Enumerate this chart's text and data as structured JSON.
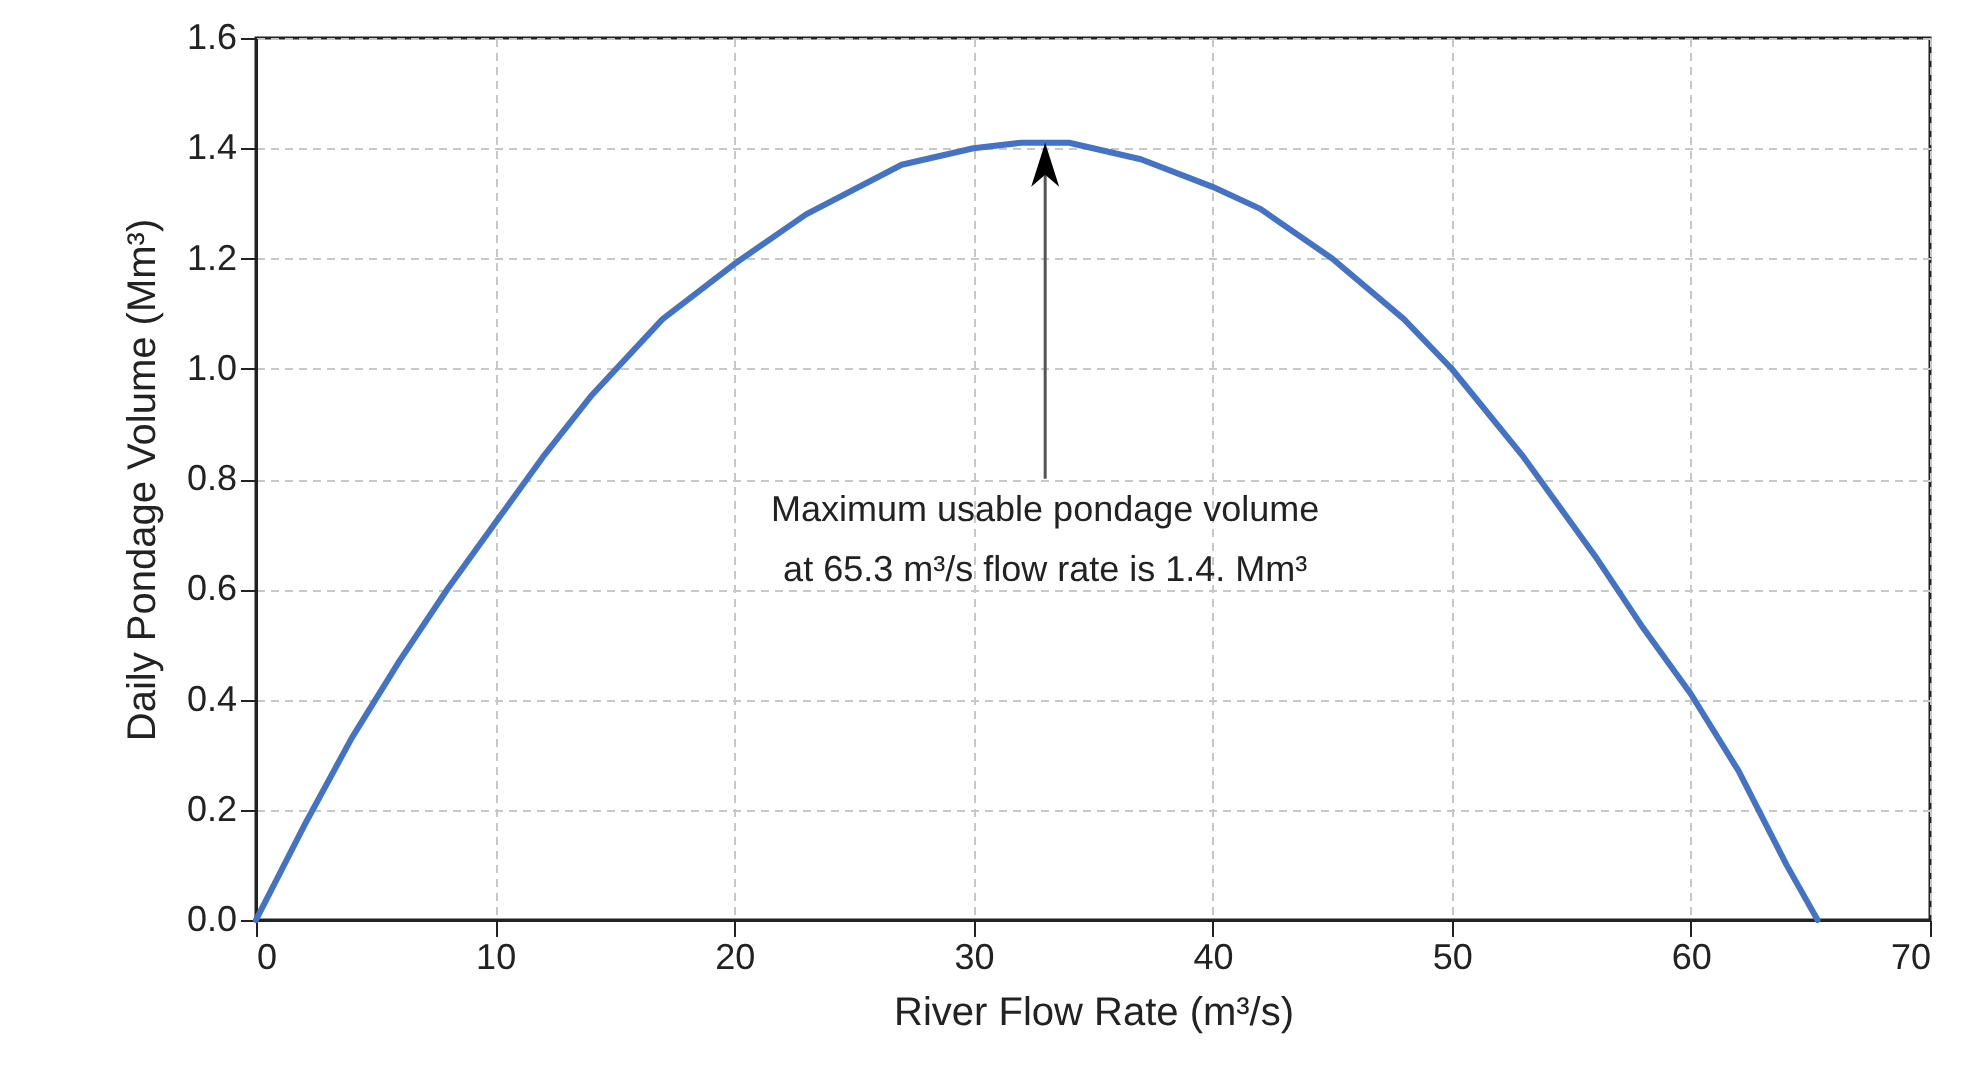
{
  "chart_data": {
    "type": "line",
    "xlabel": "River Flow Rate (m³/s)",
    "ylabel": "Daily Pondage Volume (Mm³)",
    "x": [
      0,
      2,
      4,
      6,
      8,
      10,
      12,
      14,
      17,
      20,
      23,
      27,
      30,
      32,
      34,
      37,
      40,
      42,
      45,
      48,
      50,
      53,
      56,
      58,
      60,
      62,
      64,
      65.3
    ],
    "series": [
      {
        "color": "#4472c4",
        "values": [
          0,
          0.17,
          0.33,
          0.47,
          0.6,
          0.72,
          0.84,
          0.95,
          1.09,
          1.19,
          1.28,
          1.37,
          1.4,
          1.41,
          1.41,
          1.38,
          1.33,
          1.29,
          1.2,
          1.09,
          1.0,
          0.84,
          0.66,
          0.53,
          0.41,
          0.27,
          0.1,
          0
        ]
      }
    ],
    "xlim": [
      0,
      70
    ],
    "xticks": [
      0,
      10,
      20,
      30,
      40,
      50,
      60,
      70
    ],
    "ylim": [
      0,
      1.6
    ],
    "yticks": [
      {
        "value": 0,
        "label": "0.0"
      },
      {
        "value": 0.2,
        "label": "0.2"
      },
      {
        "value": 0.4,
        "label": "0.4"
      },
      {
        "value": 0.6,
        "label": "0.6"
      },
      {
        "value": 0.8,
        "label": "0.8"
      },
      {
        "value": 1,
        "label": "1.0"
      },
      {
        "value": 1.2,
        "label": "1.2"
      },
      {
        "value": 1.4,
        "label": "1.4"
      },
      {
        "value": 1.6,
        "label": "1.6"
      }
    ],
    "annotations": [
      "Maximum usable pondage volume\nat 65.3 m³/s  flow rate is 1.4. Mm³"
    ],
    "grid": true,
    "marker": "none",
    "line_style": "solid"
  }
}
